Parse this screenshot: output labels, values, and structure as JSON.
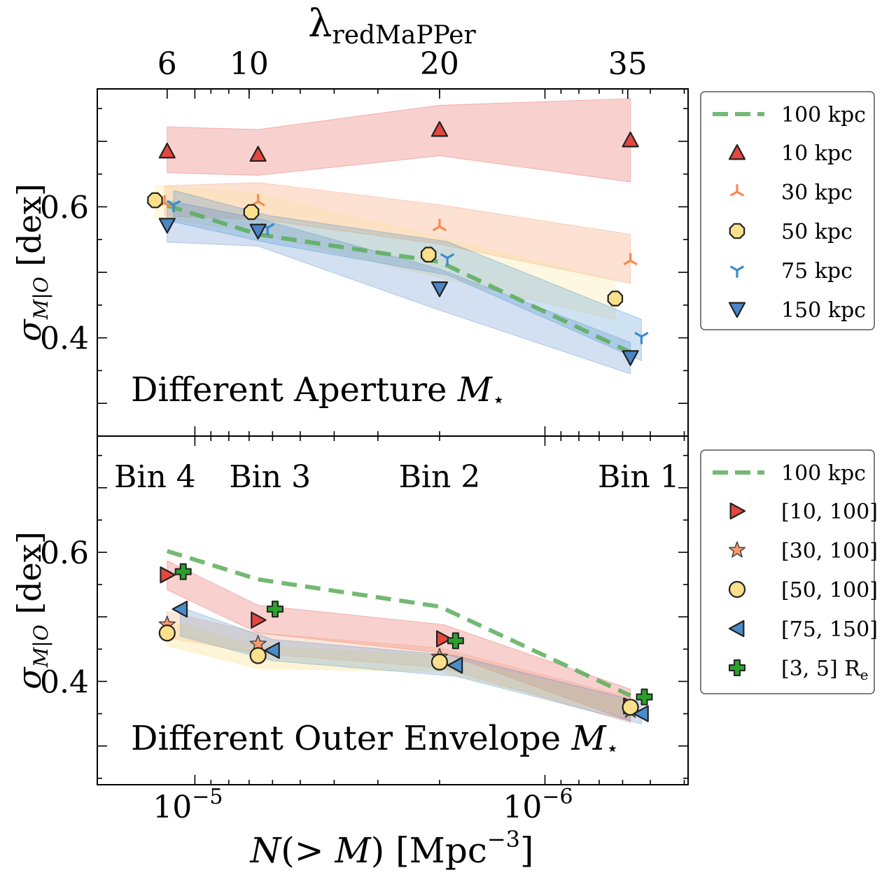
{
  "top_axis": {
    "label": "λ",
    "label_sub": "redMaPPer",
    "ticks": [
      {
        "label": "6",
        "n": 1.2e-05
      },
      {
        "label": "10",
        "n": 7e-06
      },
      {
        "label": "20",
        "n": 2e-06
      },
      {
        "label": "35",
        "n": 5.8e-07
      }
    ]
  },
  "x_axis": {
    "label": "N(> M) [Mpc",
    "label_sup": "−3",
    "label_end": "]",
    "scale": "log",
    "reversed": true,
    "range": [
      1.9e-05,
      3.9e-07
    ],
    "major_ticks": [
      {
        "value": 1e-05,
        "base": "10",
        "exp": "−5"
      },
      {
        "value": 1e-06,
        "base": "10",
        "exp": "−6"
      }
    ]
  },
  "y_axis": {
    "label_sym": "σ",
    "label_sub": "M|O",
    "label_unit": "[dex]"
  },
  "chart_data": [
    {
      "type": "scatter",
      "panel": "top",
      "annotation": "Different Aperture M⋆",
      "ylim": [
        0.25,
        0.78
      ],
      "yticks": [
        0.4,
        0.6
      ],
      "ytick_labels": [
        "0.4",
        "0.6"
      ],
      "legend_position": "right",
      "reference": {
        "name": "100 kpc",
        "color": "#5aad5a",
        "x": [
          1.2e-05,
          6.6e-06,
          2e-06,
          5.7e-07
        ],
        "y": [
          0.602,
          0.558,
          0.516,
          0.378
        ]
      },
      "series": [
        {
          "name": "10 kpc",
          "marker": "triangle-up",
          "color": "#e3473f",
          "x": [
            1.2e-05,
            6.6e-06,
            2e-06,
            5.7e-07
          ],
          "y": [
            0.685,
            0.68,
            0.718,
            0.702
          ],
          "band": {
            "upper": [
              0.722,
              0.718,
              0.755,
              0.765
            ],
            "lower": [
              0.652,
              0.648,
              0.678,
              0.638
            ]
          }
        },
        {
          "name": "30 kpc",
          "marker": "tri-down",
          "color": "#f78a52",
          "x": [
            1.22e-05,
            6.6e-06,
            2e-06,
            5.7e-07
          ],
          "y": [
            0.606,
            0.608,
            0.57,
            0.518
          ],
          "band": {
            "upper": [
              0.632,
              0.637,
              0.603,
              0.558
            ],
            "lower": [
              0.586,
              0.581,
              0.543,
              0.483
            ]
          }
        },
        {
          "name": "50 kpc",
          "marker": "octagon",
          "color": "#fbdf8a",
          "x": [
            1.3e-05,
            6.9e-06,
            2.15e-06,
            6.3e-07
          ],
          "y": [
            0.61,
            0.592,
            0.527,
            0.46
          ],
          "band": {
            "upper": [
              0.633,
              0.622,
              0.558,
              0.488
            ],
            "lower": [
              0.585,
              0.562,
              0.496,
              0.428
            ]
          }
        },
        {
          "name": "75 kpc",
          "marker": "tri-up",
          "color": "#3a8bcc",
          "x": [
            1.15e-05,
            6.2e-06,
            1.9e-06,
            5.3e-07
          ],
          "y": [
            0.603,
            0.568,
            0.522,
            0.402
          ],
          "band": {
            "upper": [
              0.625,
              0.587,
              0.547,
              0.428
            ],
            "lower": [
              0.577,
              0.545,
              0.496,
              0.365
            ]
          }
        },
        {
          "name": "150 kpc",
          "marker": "triangle-down",
          "color": "#4a85c6",
          "x": [
            1.2e-05,
            6.6e-06,
            2e-06,
            5.7e-07
          ],
          "y": [
            0.572,
            0.563,
            0.475,
            0.37
          ],
          "band": {
            "upper": [
              0.61,
              0.582,
              0.505,
              0.393
            ],
            "lower": [
              0.546,
              0.54,
              0.442,
              0.345
            ]
          }
        }
      ]
    },
    {
      "type": "scatter",
      "panel": "bottom",
      "annotation": "Different Outer Envelope M⋆",
      "bin_labels": [
        {
          "label": "Bin 4",
          "n": 1.3e-05
        },
        {
          "label": "Bin 3",
          "n": 6.1e-06
        },
        {
          "label": "Bin 2",
          "n": 2e-06
        },
        {
          "label": "Bin 1",
          "n": 5.4e-07
        }
      ],
      "ylim": [
        0.24,
        0.78
      ],
      "yticks": [
        0.4,
        0.6
      ],
      "ytick_labels": [
        "0.4",
        "0.6"
      ],
      "legend_position": "right",
      "reference": {
        "name": "100 kpc",
        "color": "#5aad5a",
        "x": [
          1.2e-05,
          6.6e-06,
          2e-06,
          5.7e-07
        ],
        "y": [
          0.602,
          0.558,
          0.516,
          0.378
        ]
      },
      "series": [
        {
          "name": "[10, 100]",
          "marker": "triangle-right",
          "color": "#e3473f",
          "x": [
            1.2e-05,
            6.6e-06,
            1.95e-06,
            5.7e-07
          ],
          "y": [
            0.565,
            0.495,
            0.466,
            0.362
          ],
          "band": {
            "upper": [
              0.587,
              0.518,
              0.488,
              0.388
            ],
            "lower": [
              0.542,
              0.475,
              0.444,
              0.338
            ]
          }
        },
        {
          "name": "[30, 100]",
          "marker": "star",
          "color": "#f89a6c",
          "x": [
            1.2e-05,
            6.6e-06,
            2e-06,
            5.7e-07
          ],
          "y": [
            0.488,
            0.458,
            0.438,
            0.355
          ],
          "band": {
            "upper": [
              0.508,
              0.475,
              0.452,
              0.375
            ],
            "lower": [
              0.468,
              0.443,
              0.422,
              0.336
            ]
          }
        },
        {
          "name": "[50, 100]",
          "marker": "circle",
          "color": "#fbdf8a",
          "x": [
            1.2e-05,
            6.6e-06,
            2e-06,
            5.7e-07
          ],
          "y": [
            0.475,
            0.44,
            0.43,
            0.36
          ],
          "band": {
            "upper": [
              0.495,
              0.455,
              0.44,
              0.37
            ],
            "lower": [
              0.455,
              0.42,
              0.415,
              0.345
            ]
          }
        },
        {
          "name": "[75, 150]",
          "marker": "triangle-left",
          "color": "#4a8bc9",
          "x": [
            1.1e-05,
            6e-06,
            1.8e-06,
            5.3e-07
          ],
          "y": [
            0.512,
            0.448,
            0.425,
            0.35
          ],
          "band": {
            "upper": [
              0.515,
              0.465,
              0.44,
              0.368
            ],
            "lower": [
              0.47,
              0.432,
              0.408,
              0.334
            ]
          }
        },
        {
          "name": "[3, 5] R",
          "name_sub": "e",
          "marker": "plus",
          "color": "#2ca02c",
          "x": [
            1.08e-05,
            5.9e-06,
            1.8e-06,
            5.2e-07
          ],
          "y": [
            0.57,
            0.512,
            0.463,
            0.376
          ]
        }
      ]
    }
  ]
}
